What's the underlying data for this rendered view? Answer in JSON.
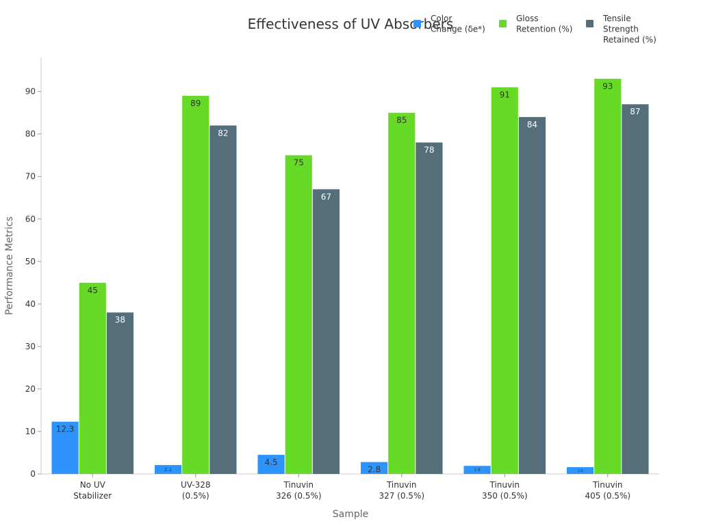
{
  "chart_data": {
    "type": "bar",
    "title": "Effectiveness of UV Absorbers",
    "xlabel": "Sample",
    "ylabel": "Performance Metrics",
    "ylim": [
      0,
      98
    ],
    "yticks": [
      0,
      10,
      20,
      30,
      40,
      50,
      60,
      70,
      80,
      90
    ],
    "grid": false,
    "legend_position": "top-right",
    "categories": [
      [
        "No UV",
        "Stabilizer"
      ],
      [
        "UV-328",
        "(0.5%)"
      ],
      [
        "Tinuvin",
        "326 (0.5%)"
      ],
      [
        "Tinuvin",
        "327 (0.5%)"
      ],
      [
        "Tinuvin",
        "350 (0.5%)"
      ],
      [
        "Tinuvin",
        "405 (0.5%)"
      ]
    ],
    "series": [
      {
        "name": [
          "Color",
          "Change (δe*)"
        ],
        "color": "#2e93fa",
        "values": [
          12.3,
          2.1,
          4.5,
          2.8,
          1.9,
          1.6
        ]
      },
      {
        "name": [
          "Gloss",
          "Retention (%)"
        ],
        "color": "#66da26",
        "values": [
          45,
          89,
          75,
          85,
          91,
          93
        ]
      },
      {
        "name": [
          "Tensile",
          "Strength",
          "Retained (%)"
        ],
        "color": "#546e7a",
        "values": [
          38,
          82,
          67,
          78,
          84,
          87
        ]
      }
    ]
  }
}
